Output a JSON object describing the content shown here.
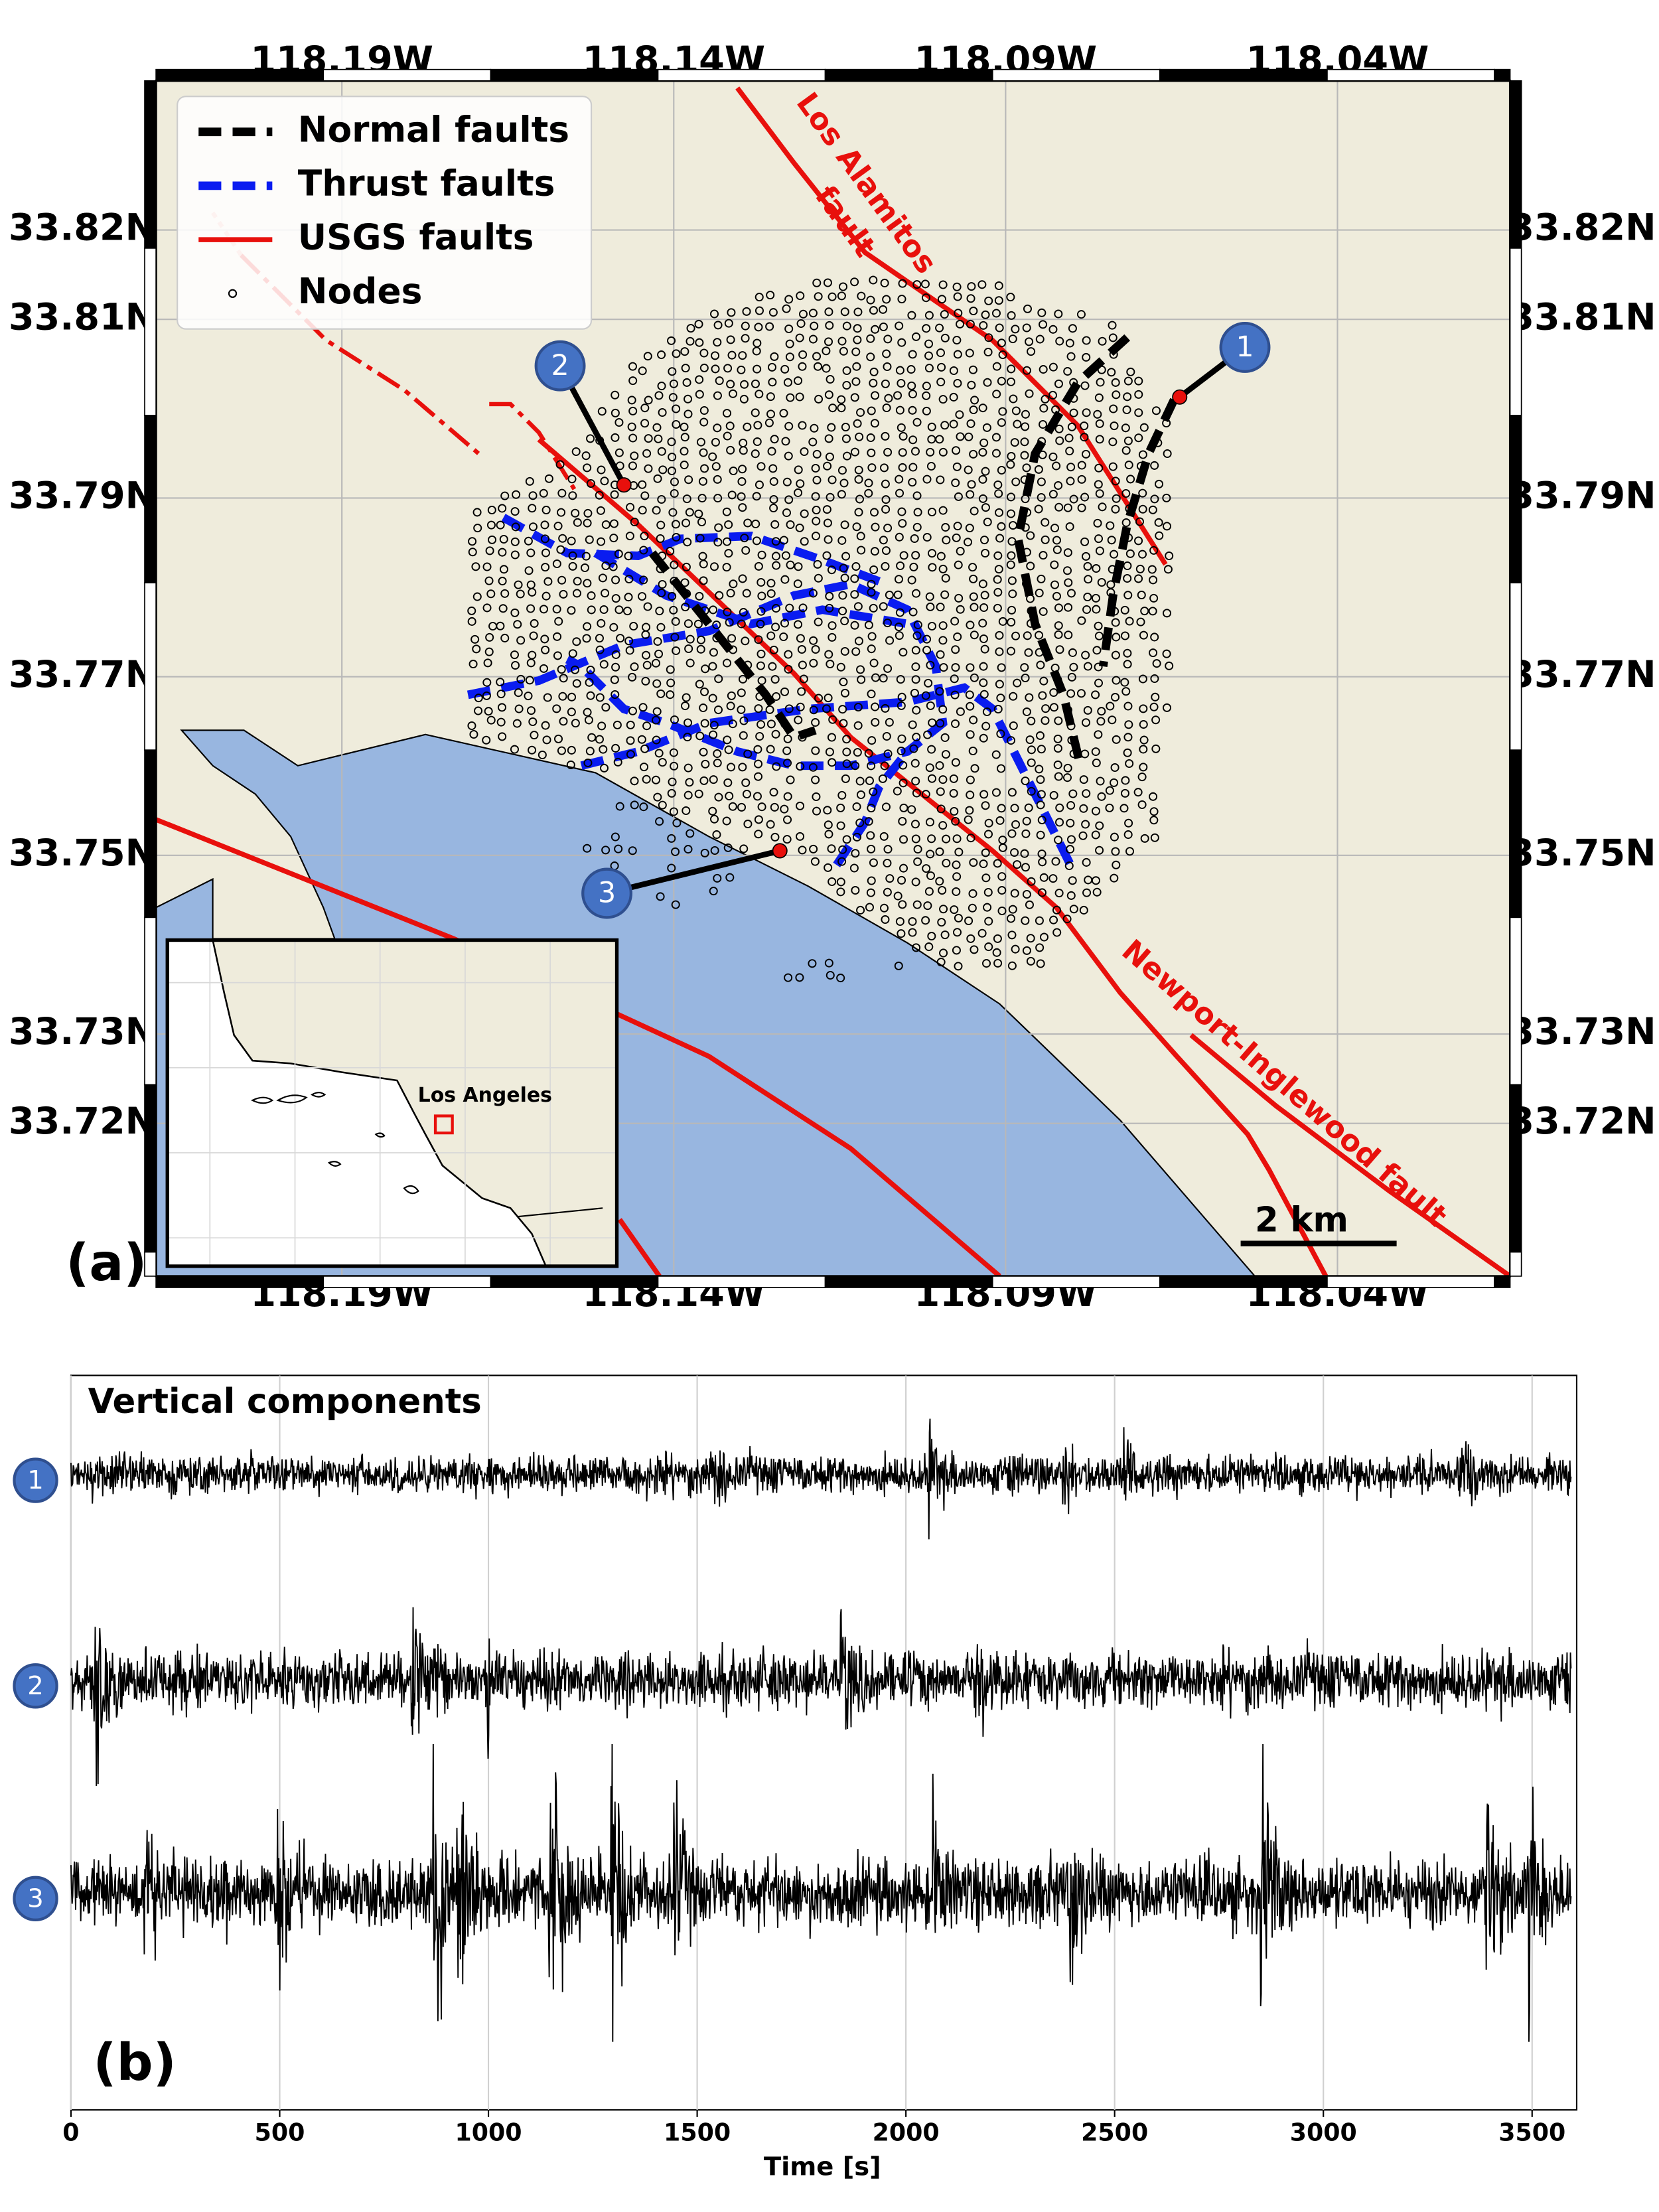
{
  "chart_data": [
    {
      "type": "map",
      "panel_label": "(a)",
      "xlim": [
        -118.218,
        -118.014
      ],
      "ylim": [
        33.7029,
        33.8367
      ],
      "xticks": [
        {
          "value": -118.19,
          "label": "118.19W"
        },
        {
          "value": -118.14,
          "label": "118.14W"
        },
        {
          "value": -118.09,
          "label": "118.09W"
        },
        {
          "value": -118.04,
          "label": "118.04W"
        }
      ],
      "yticks": [
        {
          "value": 33.82,
          "label": "33.82N"
        },
        {
          "value": 33.81,
          "label": "33.81N"
        },
        {
          "value": 33.79,
          "label": "33.79N"
        },
        {
          "value": 33.77,
          "label": "33.77N"
        },
        {
          "value": 33.75,
          "label": "33.75N"
        },
        {
          "value": 33.73,
          "label": "33.73N"
        },
        {
          "value": 33.72,
          "label": "33.72N"
        }
      ],
      "grid": true,
      "series": [
        {
          "name": "Normal faults",
          "color": "#000000"
        },
        {
          "name": "Thrust faults",
          "color": "#0a1cf0"
        },
        {
          "name": "USGS faults",
          "color": "#e8100c"
        },
        {
          "name": "Nodes",
          "color": "#000000"
        }
      ],
      "legend": "upper left",
      "annotations": [
        "Los Alamitos",
        "fault",
        "Newport-Inglewood fault",
        "2 km",
        "Los Angeles"
      ],
      "stations": [
        "1",
        "2",
        "3"
      ]
    },
    {
      "type": "waveform",
      "title": "Vertical components",
      "panel_label": "(b)",
      "xlabel": "Time [s]",
      "xlim": [
        0,
        3600
      ],
      "xticks": [
        0,
        500,
        1000,
        1500,
        2000,
        2500,
        3000,
        3500
      ],
      "grid": true,
      "series": [
        {
          "name": "1",
          "color": "#000000"
        },
        {
          "name": "2",
          "color": "#000000"
        },
        {
          "name": "3",
          "color": "#000000"
        }
      ]
    }
  ]
}
